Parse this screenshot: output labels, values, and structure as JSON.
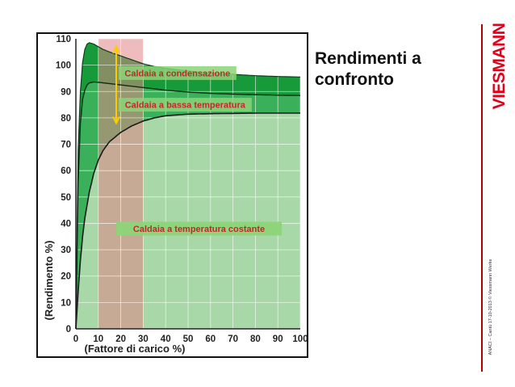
{
  "slide": {
    "title": "Rendimenti a confronto",
    "brand": "VIESMANN",
    "footer": "ANACI – Cantù  17-10-2013  © Viessmann Werke"
  },
  "colors": {
    "dark_green": "#169a3a",
    "mid_green": "#3bb05a",
    "light_green": "#a8d8a8",
    "red_band": "#e08585",
    "label_bg": "#8cd478",
    "label_text": "#c0282e",
    "arrow": "#ffcc00"
  },
  "chart_data": {
    "type": "area",
    "xlabel": "(Fattore di carico %)",
    "ylabel": "(Rendimento %)",
    "xlim": [
      0,
      100
    ],
    "ylim": [
      0,
      110
    ],
    "x_ticks": [
      "0",
      "10",
      "20",
      "30",
      "40",
      "50",
      "60",
      "70",
      "80",
      "90",
      "100"
    ],
    "y_ticks": [
      "0",
      "10",
      "20",
      "30",
      "40",
      "50",
      "60",
      "70",
      "80",
      "90",
      "100",
      "110"
    ],
    "grid": true,
    "highlight_band_x": [
      10,
      30
    ],
    "arrow_range": {
      "x": 18,
      "y": [
        78,
        107
      ]
    },
    "series": [
      {
        "name": "Caldaia a condensazione",
        "x": [
          0,
          1,
          2,
          3,
          4,
          5,
          6,
          8,
          10,
          12,
          15,
          20,
          25,
          30,
          35,
          40,
          50,
          60,
          70,
          80,
          90,
          100
        ],
        "y": [
          0,
          68,
          90,
          101,
          106,
          108,
          108.5,
          108,
          107,
          106,
          105,
          103.5,
          102,
          100.5,
          99.5,
          98.8,
          97.8,
          97,
          96.5,
          96,
          95.7,
          95.5
        ]
      },
      {
        "name": "Caldaia a bassa temperatura",
        "x": [
          0,
          1,
          2,
          3,
          4,
          5,
          6,
          8,
          10,
          12,
          15,
          20,
          25,
          30,
          40,
          50,
          60,
          70,
          80,
          90,
          100
        ],
        "y": [
          0,
          55,
          78,
          87,
          90.5,
          92.5,
          93.3,
          93.6,
          93.5,
          93.3,
          93,
          92.5,
          92,
          91.5,
          90.5,
          89.8,
          89.3,
          89,
          88.8,
          88.6,
          88.5
        ]
      },
      {
        "name": "Caldaia a temperatura costante",
        "x": [
          0,
          1,
          2,
          3,
          4,
          6,
          8,
          10,
          12,
          15,
          20,
          25,
          30,
          35,
          40,
          50,
          60,
          70,
          80,
          90,
          100
        ],
        "y": [
          0,
          14,
          26,
          35,
          42,
          52,
          59,
          64,
          67.5,
          71,
          74.5,
          77,
          78.8,
          80,
          80.8,
          81.4,
          81.6,
          81.7,
          81.8,
          81.8,
          81.8
        ]
      }
    ]
  }
}
